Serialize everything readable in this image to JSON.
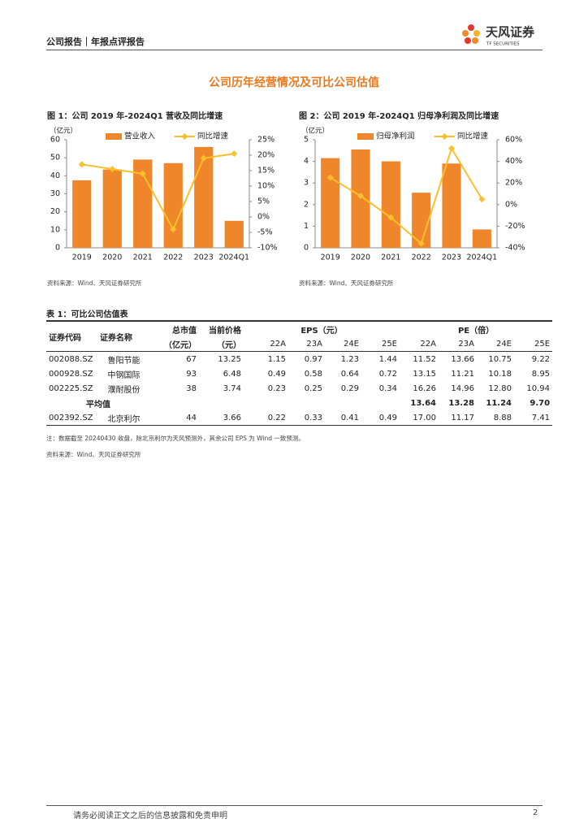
{
  "header": {
    "report_type": "公司报告｜年报点评报告",
    "logo_text": "天风证券",
    "logo_sub": "TF SECURITIES"
  },
  "section_title": "公司历年经营情况及可比公司估值",
  "chart_data": [
    {
      "type": "bar",
      "title": "图 1：公司 2019 年-2024Q1 营收及同比增速",
      "y_label": "（亿元）",
      "categories": [
        "2019",
        "2020",
        "2021",
        "2022",
        "2023",
        "2024Q1"
      ],
      "series": [
        {
          "name": "营业收入",
          "type": "bar",
          "color": "#f0862a",
          "values": [
            37.5,
            43.5,
            49,
            47,
            56,
            15
          ]
        },
        {
          "name": "同比增速",
          "type": "line",
          "axis": "y2",
          "color": "#fbbf2d",
          "values": [
            17,
            15.5,
            14,
            -4,
            19,
            20.5
          ]
        }
      ],
      "ylim": [
        0,
        60
      ],
      "yticks": [
        0,
        10,
        20,
        30,
        40,
        50,
        60
      ],
      "y2lim": [
        -10,
        25
      ],
      "y2ticks": [
        {
          "value": -10,
          "label": "-10%"
        },
        {
          "value": -5,
          "label": "-5%"
        },
        {
          "value": 0,
          "label": "0%"
        },
        {
          "value": 5,
          "label": "5%"
        },
        {
          "value": 10,
          "label": "10%"
        },
        {
          "value": 15,
          "label": "15%"
        },
        {
          "value": 20,
          "label": "20%"
        },
        {
          "value": 25,
          "label": "25%"
        }
      ],
      "source": "资料来源：Wind、天风证券研究所"
    },
    {
      "type": "bar",
      "title": "图 2：公司 2019 年-2024Q1 归母净利润及同比增速",
      "y_label": "（亿元）",
      "categories": [
        "2019",
        "2020",
        "2021",
        "2022",
        "2023",
        "2024Q1"
      ],
      "series": [
        {
          "name": "归母净利润",
          "type": "bar",
          "color": "#f0862a",
          "values": [
            4.15,
            4.55,
            4.0,
            2.55,
            3.9,
            0.85
          ]
        },
        {
          "name": "同比增速",
          "type": "line",
          "axis": "y2",
          "color": "#fbbf2d",
          "values": [
            25,
            8,
            -12,
            -36,
            52,
            5
          ]
        }
      ],
      "ylim": [
        0,
        5
      ],
      "yticks": [
        0,
        1,
        2,
        3,
        4,
        5
      ],
      "y2lim": [
        -40,
        60
      ],
      "y2ticks": [
        {
          "value": -40,
          "label": "-40%"
        },
        {
          "value": -20,
          "label": "-20%"
        },
        {
          "value": 0,
          "label": "0%"
        },
        {
          "value": 20,
          "label": "20%"
        },
        {
          "value": 40,
          "label": "40%"
        },
        {
          "value": 60,
          "label": "60%"
        }
      ],
      "source": "资料来源：Wind、天风证券研究所"
    }
  ],
  "table": {
    "title": "表 1：可比公司估值表",
    "header_row1": [
      "证券代码",
      "证券名称",
      "总市值",
      "当前价格",
      "EPS（元）",
      "PE（倍）"
    ],
    "header_row2": [
      "（亿元）",
      "（元）",
      "22A",
      "23A",
      "24E",
      "25E",
      "22A",
      "23A",
      "24E",
      "25E"
    ],
    "rows": [
      [
        "002088.SZ",
        "鲁阳节能",
        "67",
        "13.25",
        "1.15",
        "0.97",
        "1.23",
        "1.44",
        "11.52",
        "13.66",
        "10.75",
        "9.22"
      ],
      [
        "000928.SZ",
        "中钢国际",
        "93",
        "6.48",
        "0.49",
        "0.58",
        "0.64",
        "0.72",
        "13.15",
        "11.21",
        "10.18",
        "8.95"
      ],
      [
        "002225.SZ",
        "濮耐股份",
        "38",
        "3.74",
        "0.23",
        "0.25",
        "0.29",
        "0.34",
        "16.26",
        "14.96",
        "12.80",
        "10.94"
      ]
    ],
    "average": {
      "label": "平均值",
      "values": [
        "13.64",
        "13.28",
        "11.24",
        "9.70"
      ]
    },
    "target": [
      "002392.SZ",
      "北京利尔",
      "44",
      "3.66",
      "0.22",
      "0.33",
      "0.41",
      "0.49",
      "17.00",
      "11.17",
      "8.88",
      "7.41"
    ],
    "note": "注：数据截至 20240430 收盘，除北京利尔为天风预测外，其余公司 EPS 为 Wind 一致预测。",
    "source": "资料来源：Wind、天风证券研究所"
  },
  "footer": {
    "disclaimer": "请务必阅读正文之后的信息披露和免责申明",
    "page": "2"
  }
}
